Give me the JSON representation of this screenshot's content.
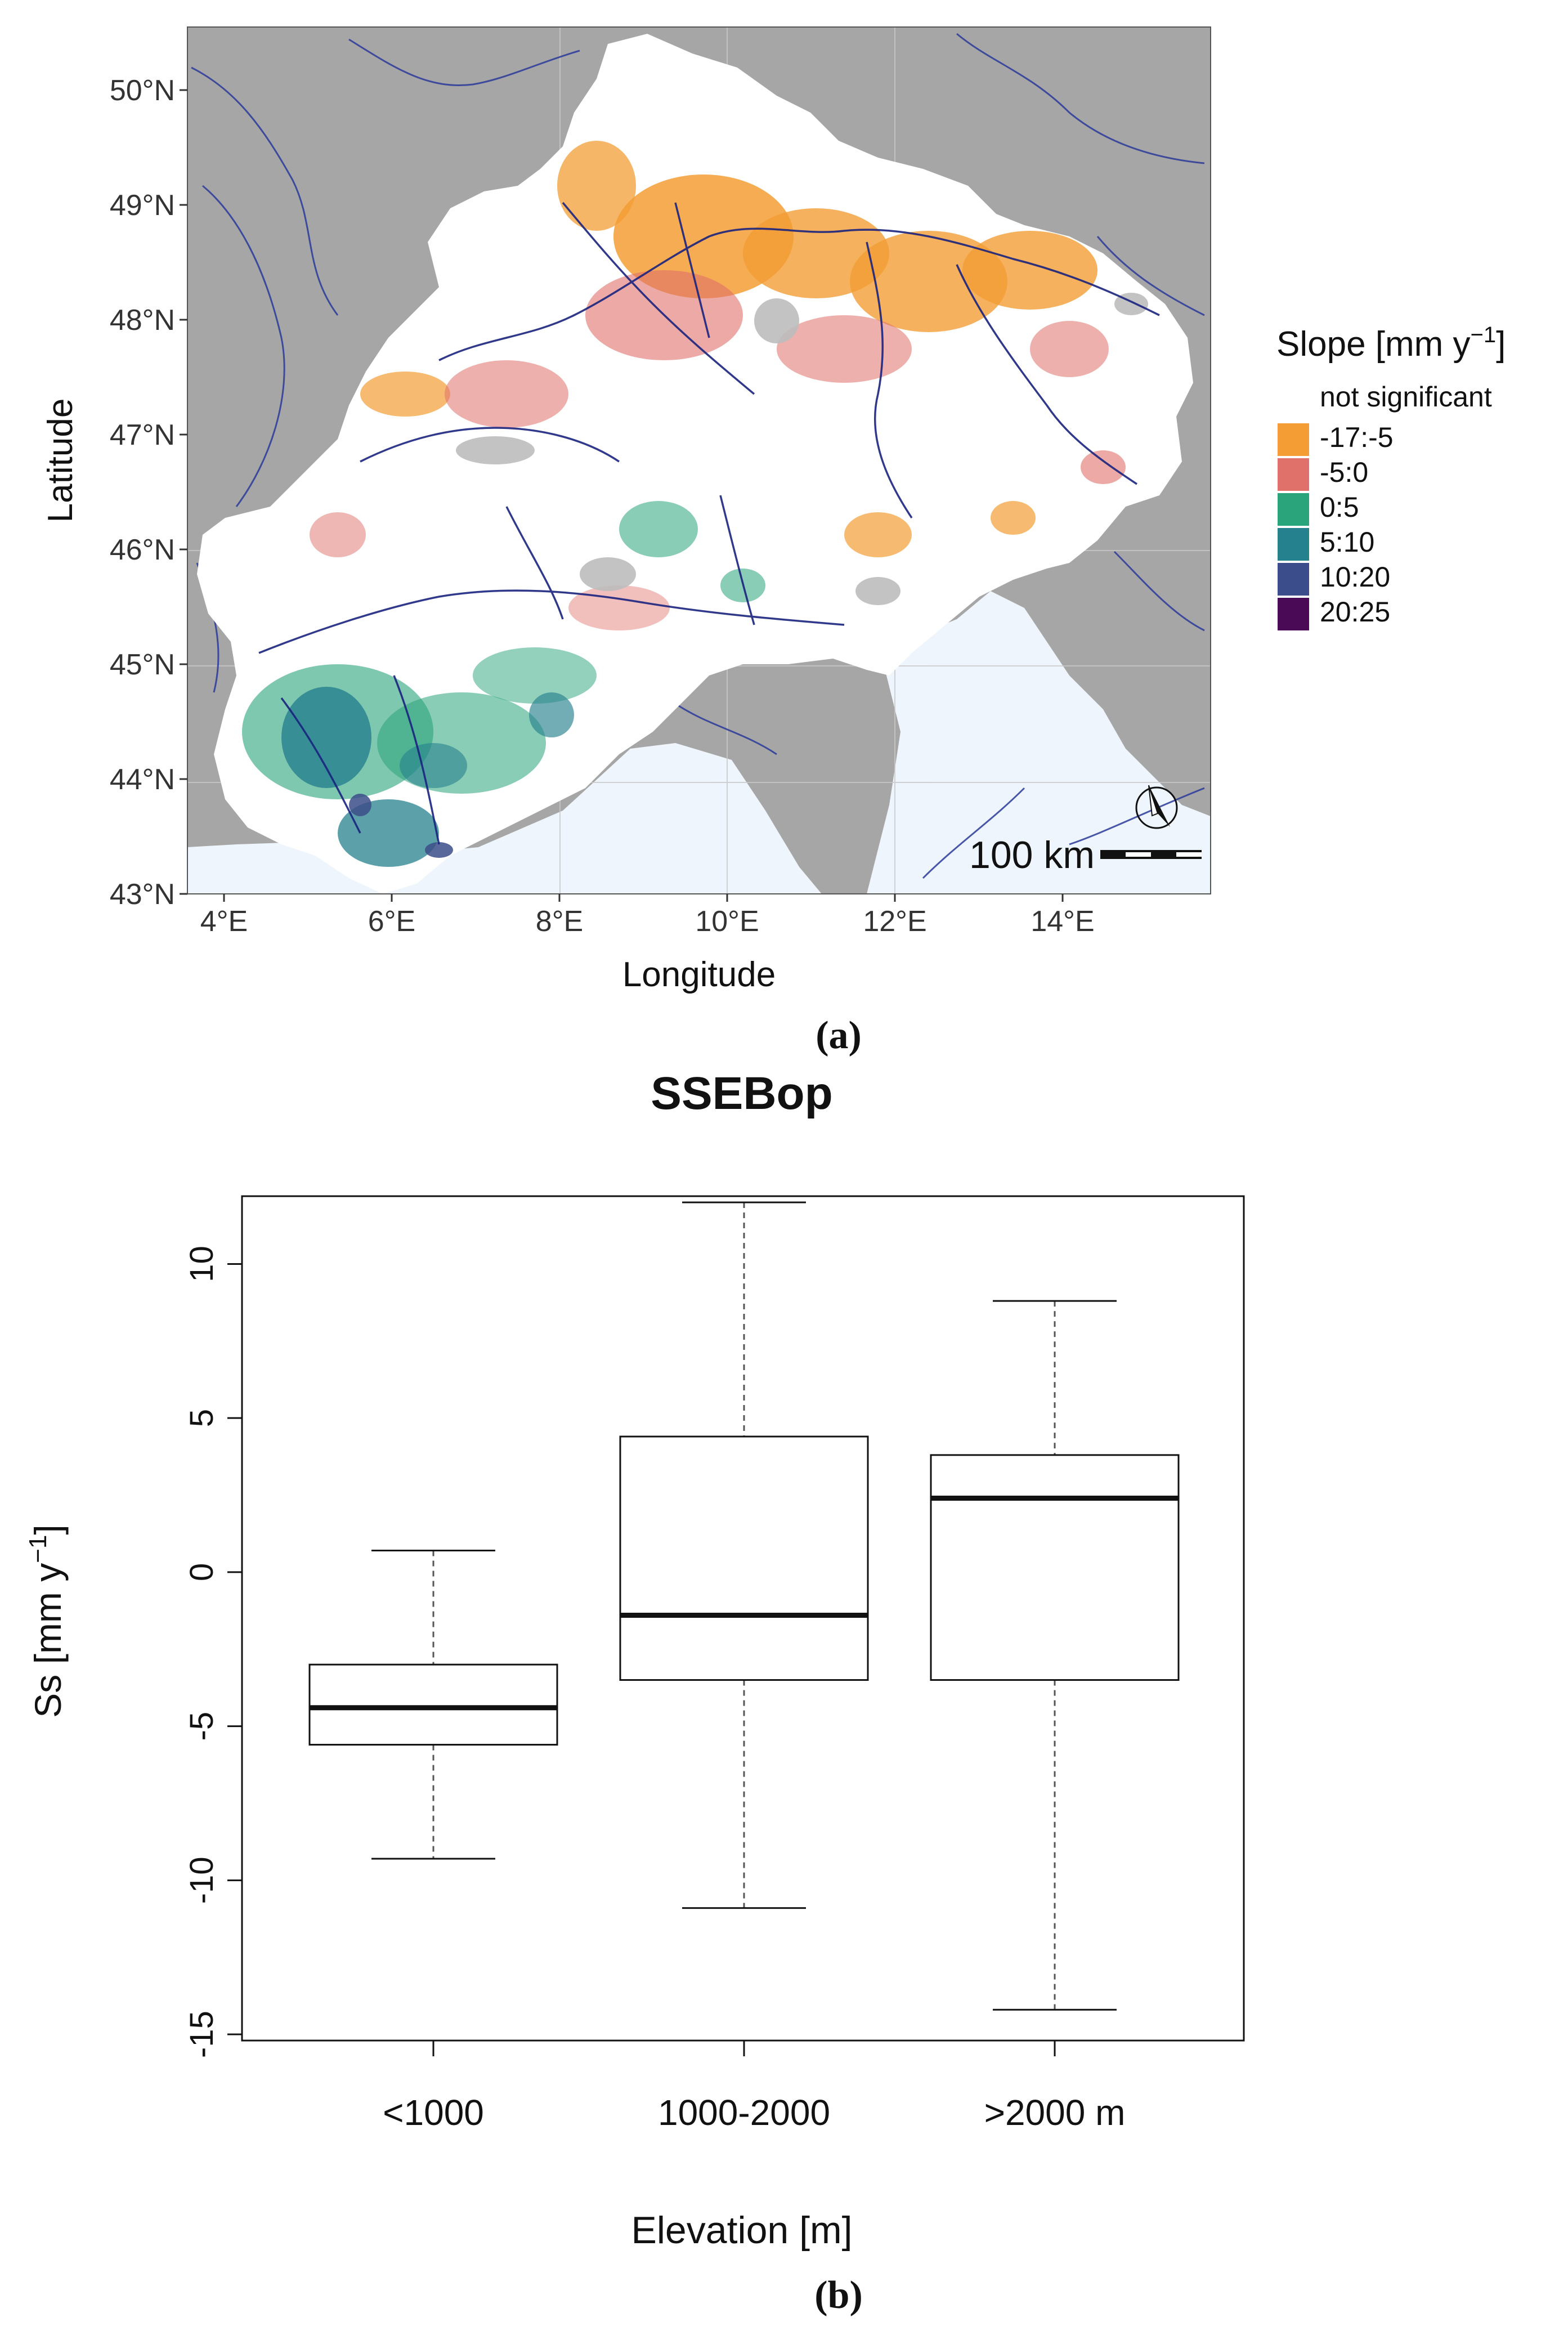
{
  "panel_a": {
    "label": "(a)",
    "xlabel": "Longitude",
    "ylabel": "Latitude",
    "x_ticks": [
      "4°E",
      "6°E",
      "8°E",
      "10°E",
      "12°E",
      "14°E"
    ],
    "y_ticks": [
      "43°N",
      "44°N",
      "45°N",
      "46°N",
      "47°N",
      "48°N",
      "49°N",
      "50°N"
    ],
    "scale_bar": "100 km",
    "legend": {
      "title": "Slope [mm y",
      "title_sup": "−1",
      "title_end": "]",
      "items": [
        {
          "label": "not significant",
          "color": "#ffffff"
        },
        {
          "label": "-17:-5",
          "color": "#f39d34"
        },
        {
          "label": "-5:0",
          "color": "#e0706a"
        },
        {
          "label": "0:5",
          "color": "#2aa47b"
        },
        {
          "label": "5:10",
          "color": "#26818e"
        },
        {
          "label": "10:20",
          "color": "#3b4d8a"
        },
        {
          "label": "20:25",
          "color": "#4b0a56"
        }
      ]
    },
    "colors": {
      "sea": "#eef5fc",
      "land_outside": "#a6a6a6",
      "basin": "#ffffff",
      "rivers": "#1a237e"
    }
  },
  "panel_b": {
    "label": "(b)",
    "title": "SSEBop",
    "xlabel": "Elevation [m]",
    "ylabel": "Ss [mm y",
    "ylabel_sup": "−1",
    "ylabel_end": "]"
  },
  "chart_data": {
    "type": "boxplot",
    "title": "SSEBop",
    "xlabel": "Elevation [m]",
    "ylabel": "Ss [mm y⁻¹]",
    "ylim": [
      -15.2,
      12.2
    ],
    "y_ticks": [
      "-15",
      "-10",
      "-5",
      "0",
      "5",
      "10"
    ],
    "categories": [
      "<1000",
      "1000-2000",
      ">2000 m"
    ],
    "boxes": [
      {
        "category": "<1000",
        "min": -9.3,
        "q1": -5.6,
        "median": -4.4,
        "q3": -3.0,
        "max": 0.7
      },
      {
        "category": "1000-2000",
        "min": -10.9,
        "q1": -3.5,
        "median": -1.4,
        "q3": 4.4,
        "max": 12.0
      },
      {
        "category": ">2000 m",
        "min": -14.2,
        "q1": -3.5,
        "median": 2.4,
        "q3": 3.8,
        "max": 8.8
      }
    ]
  }
}
